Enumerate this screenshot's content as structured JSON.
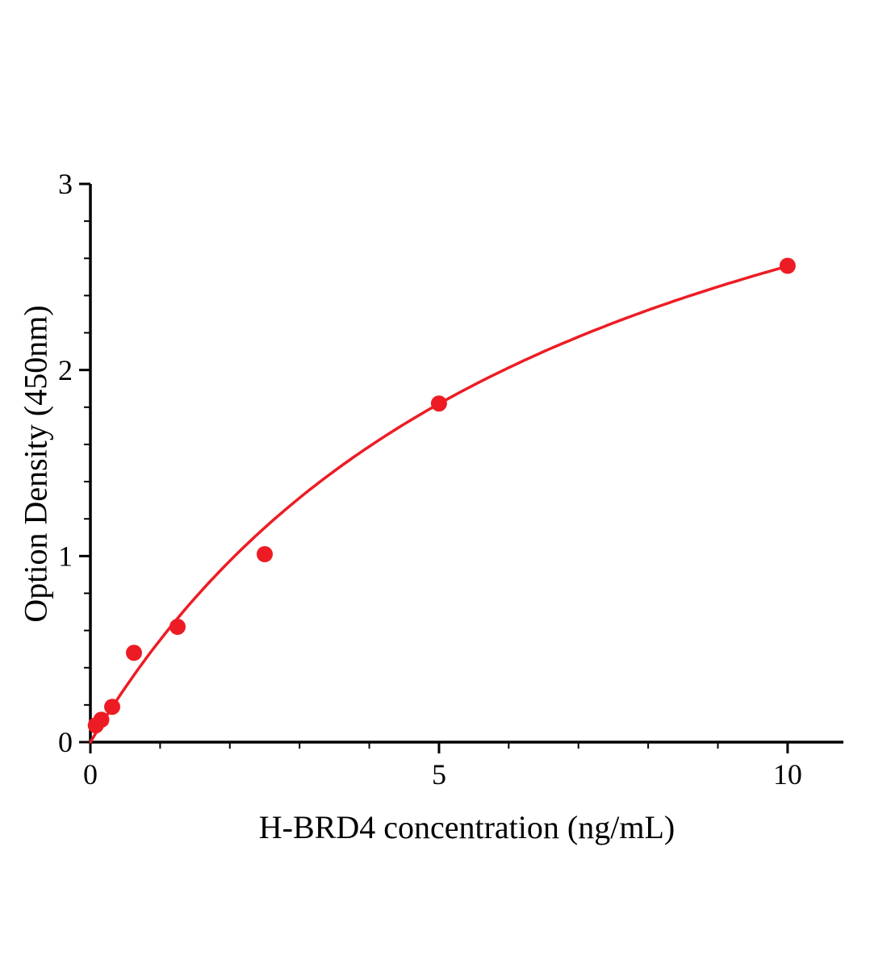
{
  "chart_data": {
    "type": "scatter",
    "title": "",
    "xlabel": "H-BRD4 concentration (ng/mL)",
    "ylabel": "Option Density (450nm)",
    "x": [
      0.078,
      0.156,
      0.313,
      0.625,
      1.25,
      2.5,
      5,
      10
    ],
    "y": [
      0.09,
      0.12,
      0.19,
      0.48,
      0.62,
      1.01,
      1.82,
      2.56
    ],
    "xlim": [
      0,
      10.8
    ],
    "ylim": [
      0,
      3
    ],
    "x_ticks": [
      0,
      5,
      10
    ],
    "y_ticks": [
      0,
      1,
      2,
      3
    ],
    "x_minor_step": 1,
    "y_minor_step": 0.2,
    "point_color": "#ed1c24",
    "line_color": "#ed1c24",
    "axis_color": "#000000",
    "grid": false,
    "legend": null,
    "fit": {
      "type": "michaelis-menten",
      "vmax": 4.31,
      "km": 6.85
    }
  }
}
